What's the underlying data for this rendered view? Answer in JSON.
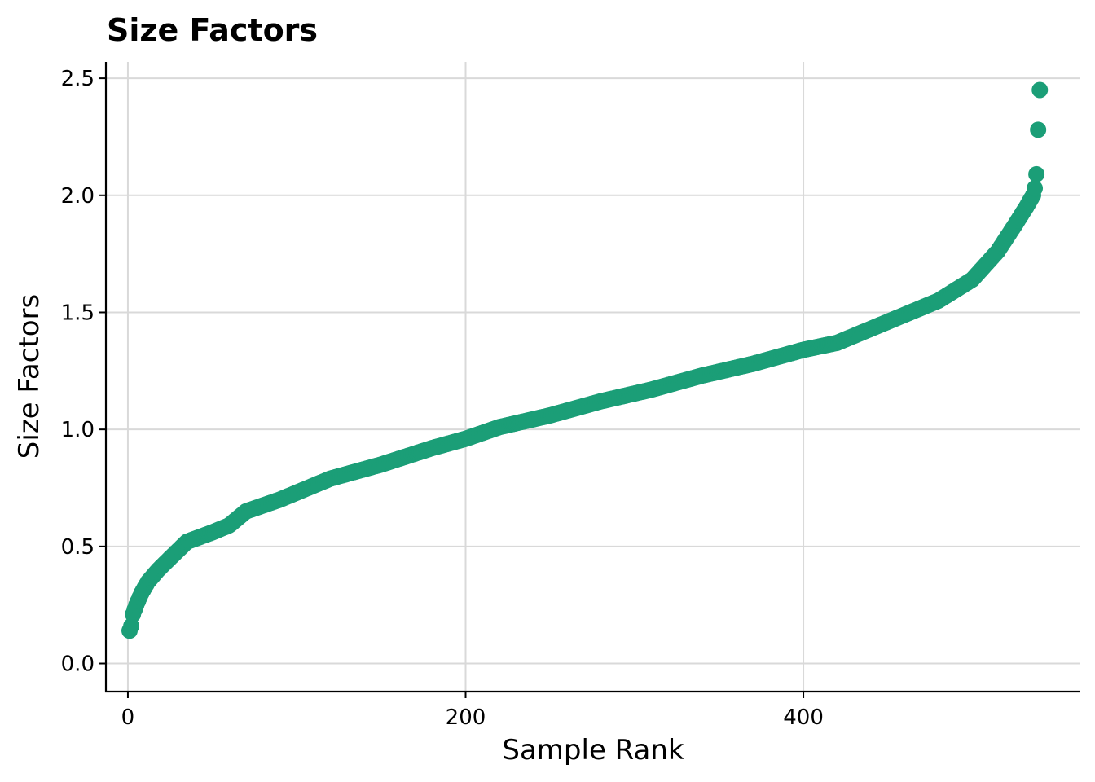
{
  "chart_data": {
    "type": "scatter",
    "title": "Size Factors",
    "xlabel": "Sample Rank",
    "ylabel": "Size Factors",
    "xlim": [
      -13,
      564
    ],
    "ylim": [
      -0.12,
      2.57
    ],
    "xticks": [
      0,
      200,
      400
    ],
    "xtick_labels": [
      "0",
      "200",
      "400"
    ],
    "yticks": [
      0.0,
      0.5,
      1.0,
      1.5,
      2.0,
      2.5
    ],
    "ytick_labels": [
      "0.0",
      "0.5",
      "1.0",
      "1.5",
      "2.0",
      "2.5"
    ],
    "grid": true,
    "legend": "none",
    "marker_color": "#1b9e77",
    "n_points": 540,
    "curve_anchors": [
      [
        1,
        0.14
      ],
      [
        2,
        0.16
      ],
      [
        3,
        0.21
      ],
      [
        5,
        0.25
      ],
      [
        8,
        0.3
      ],
      [
        12,
        0.35
      ],
      [
        18,
        0.4
      ],
      [
        25,
        0.45
      ],
      [
        35,
        0.52
      ],
      [
        50,
        0.56
      ],
      [
        60,
        0.59
      ],
      [
        70,
        0.65
      ],
      [
        90,
        0.7
      ],
      [
        120,
        0.79
      ],
      [
        150,
        0.85
      ],
      [
        180,
        0.92
      ],
      [
        200,
        0.96
      ],
      [
        220,
        1.01
      ],
      [
        250,
        1.06
      ],
      [
        280,
        1.12
      ],
      [
        310,
        1.17
      ],
      [
        340,
        1.23
      ],
      [
        370,
        1.28
      ],
      [
        400,
        1.34
      ],
      [
        420,
        1.37
      ],
      [
        440,
        1.43
      ],
      [
        460,
        1.49
      ],
      [
        480,
        1.55
      ],
      [
        500,
        1.64
      ],
      [
        515,
        1.76
      ],
      [
        525,
        1.87
      ],
      [
        532,
        1.95
      ],
      [
        536,
        2.0
      ],
      [
        537,
        2.03
      ],
      [
        538,
        2.09
      ],
      [
        539,
        2.28
      ],
      [
        540,
        2.45
      ]
    ]
  }
}
